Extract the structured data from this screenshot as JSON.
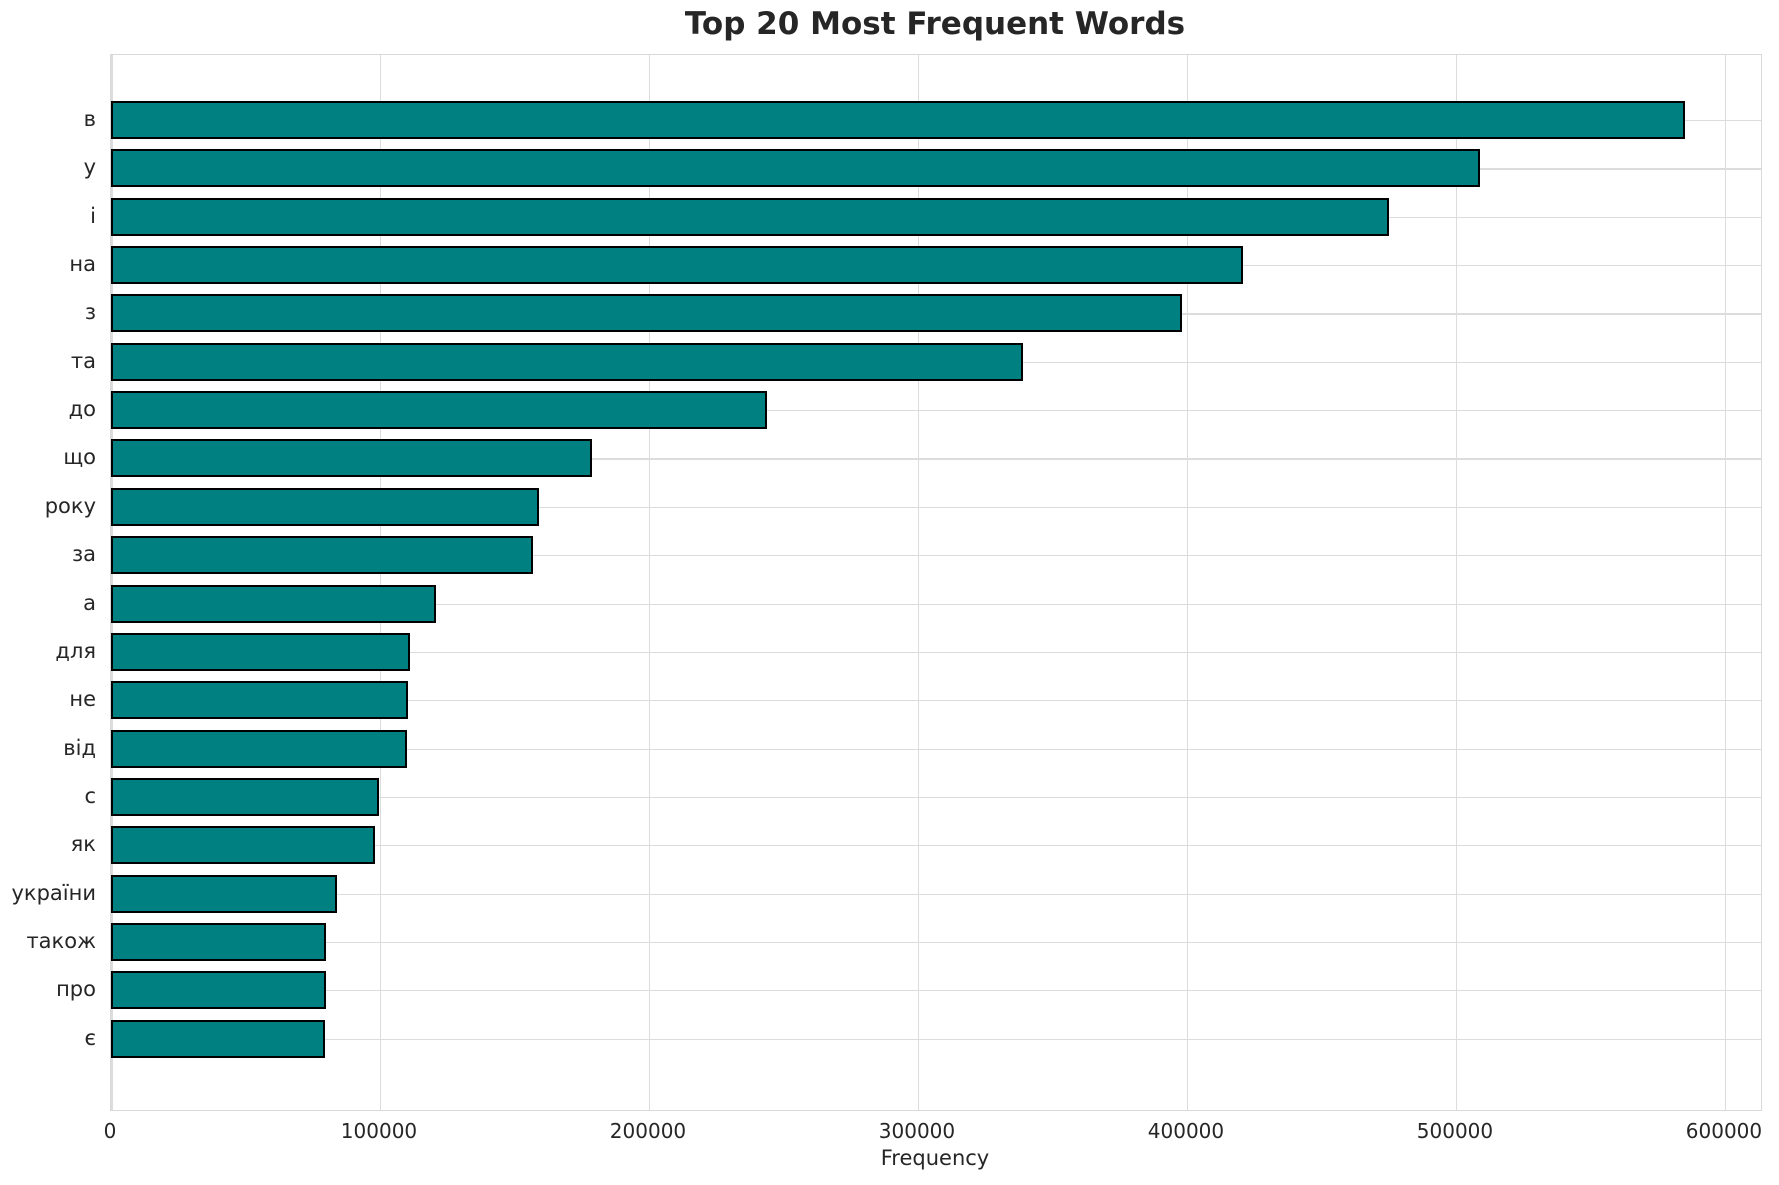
{
  "chart_data": {
    "type": "bar",
    "orientation": "horizontal",
    "title": "Top 20 Most Frequent Words",
    "xlabel": "Frequency",
    "ylabel": "",
    "categories": [
      "в",
      "у",
      "і",
      "на",
      "з",
      "та",
      "до",
      "що",
      "року",
      "за",
      "а",
      "для",
      "не",
      "від",
      "с",
      "як",
      "україни",
      "також",
      "про",
      "є"
    ],
    "values": [
      585000,
      509000,
      475000,
      421000,
      398000,
      339000,
      244000,
      179000,
      159000,
      157000,
      121000,
      111000,
      110500,
      110000,
      99500,
      98000,
      84000,
      80000,
      79900,
      79700
    ],
    "xlim": [
      0,
      613400
    ],
    "x_ticks": [
      0,
      100000,
      200000,
      300000,
      400000,
      500000,
      600000
    ],
    "x_tick_labels": [
      "0",
      "100000",
      "200000",
      "300000",
      "400000",
      "500000",
      "600000"
    ],
    "grid": true,
    "legend": false,
    "bar_color": "#008080",
    "bar_edge_color": "#000000",
    "grid_color": "#dcdcdc",
    "text_color": "#262626",
    "background_color": "#ffffff"
  }
}
